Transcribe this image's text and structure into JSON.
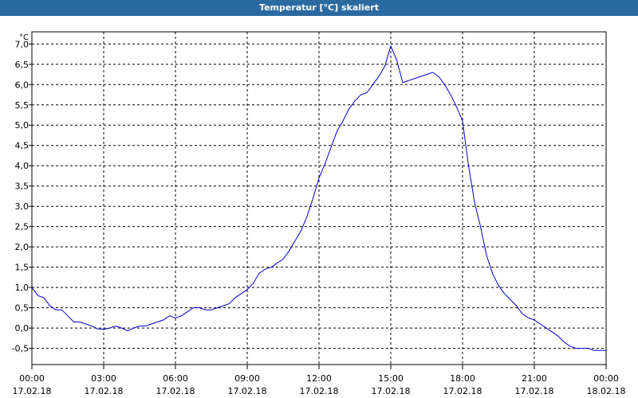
{
  "window": {
    "title": "Temperatur [°C] skaliert"
  },
  "chart_data": {
    "type": "line",
    "title": "Temperatur [°C] skaliert",
    "ylabel": "°C",
    "xlabel": "",
    "xlim": [
      0,
      24
    ],
    "ylim": [
      -0.9,
      7.3
    ],
    "grid": true,
    "y_ticks": [
      "7,0",
      "6,5",
      "6,0",
      "5,5",
      "5,0",
      "4,5",
      "4,0",
      "3,5",
      "3,0",
      "2,5",
      "2,0",
      "1,5",
      "1,0",
      "0,5",
      "0,0",
      "-0,5"
    ],
    "x_ticks": [
      {
        "time": "00:00",
        "date": "17.02.18"
      },
      {
        "time": "03:00",
        "date": "17.02.18"
      },
      {
        "time": "06:00",
        "date": "17.02.18"
      },
      {
        "time": "09:00",
        "date": "17.02.18"
      },
      {
        "time": "12:00",
        "date": "17.02.18"
      },
      {
        "time": "15:00",
        "date": "17.02.18"
      },
      {
        "time": "18:00",
        "date": "17.02.18"
      },
      {
        "time": "21:00",
        "date": "17.02.18"
      },
      {
        "time": "00:00",
        "date": "18.02.18"
      }
    ],
    "series": [
      {
        "color": "#0000cc",
        "x": [
          0.0,
          0.25,
          0.5,
          0.75,
          1.0,
          1.25,
          1.5,
          1.75,
          2.0,
          2.25,
          2.5,
          2.75,
          3.0,
          3.25,
          3.5,
          3.75,
          4.0,
          4.25,
          4.5,
          4.75,
          5.0,
          5.25,
          5.5,
          5.75,
          6.0,
          6.25,
          6.5,
          6.75,
          7.0,
          7.25,
          7.5,
          7.75,
          8.0,
          8.25,
          8.5,
          8.75,
          9.0,
          9.25,
          9.5,
          9.75,
          10.0,
          10.25,
          10.5,
          10.75,
          11.0,
          11.25,
          11.5,
          11.75,
          12.0,
          12.25,
          12.5,
          12.75,
          13.0,
          13.25,
          13.5,
          13.75,
          14.0,
          14.25,
          14.5,
          14.75,
          15.0,
          15.25,
          15.5,
          15.75,
          16.0,
          16.25,
          16.5,
          16.75,
          17.0,
          17.25,
          17.5,
          17.75,
          18.0,
          18.25,
          18.5,
          18.75,
          19.0,
          19.25,
          19.5,
          19.75,
          20.0,
          20.25,
          20.5,
          20.75,
          21.0,
          21.25,
          21.5,
          21.75,
          22.0,
          22.25,
          22.5,
          22.75,
          23.0,
          23.25,
          23.5,
          23.75,
          24.0
        ],
        "y": [
          1.0,
          0.8,
          0.75,
          0.55,
          0.45,
          0.45,
          0.3,
          0.15,
          0.15,
          0.1,
          0.05,
          -0.02,
          -0.03,
          0.0,
          0.05,
          0.0,
          -0.07,
          0.0,
          0.05,
          0.05,
          0.1,
          0.15,
          0.2,
          0.3,
          0.25,
          0.3,
          0.4,
          0.5,
          0.5,
          0.45,
          0.45,
          0.5,
          0.55,
          0.6,
          0.75,
          0.85,
          0.95,
          1.1,
          1.35,
          1.45,
          1.5,
          1.6,
          1.7,
          1.9,
          2.15,
          2.4,
          2.75,
          3.2,
          3.7,
          4.05,
          4.45,
          4.85,
          5.1,
          5.4,
          5.6,
          5.75,
          5.8,
          6.0,
          6.2,
          6.45,
          6.95,
          6.6,
          6.05,
          6.1,
          6.15,
          6.2,
          6.25,
          6.3,
          6.2,
          6.0,
          5.75,
          5.45,
          5.1,
          4.0,
          3.1,
          2.5,
          1.8,
          1.35,
          1.05,
          0.85,
          0.7,
          0.55,
          0.35,
          0.25,
          0.2,
          0.1,
          0.0,
          -0.1,
          -0.2,
          -0.35,
          -0.45,
          -0.5,
          -0.5,
          -0.5,
          -0.55,
          -0.55,
          -0.55
        ]
      }
    ]
  }
}
